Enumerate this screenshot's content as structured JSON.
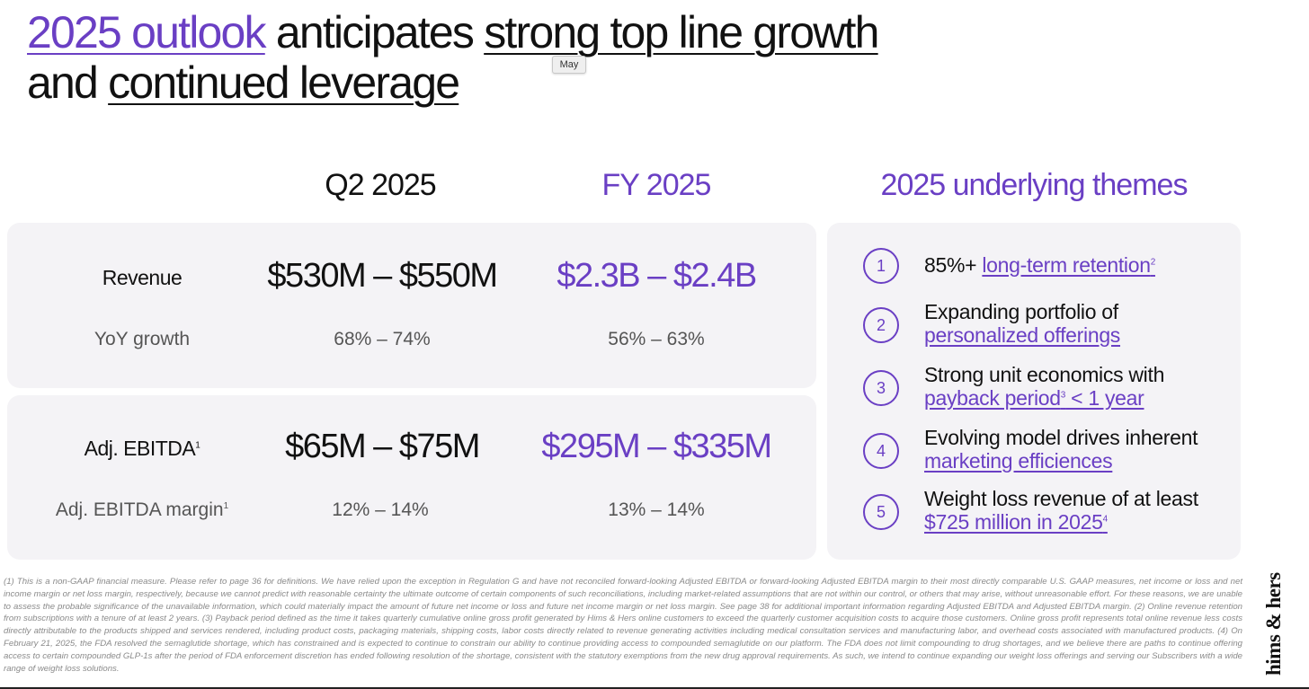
{
  "title": {
    "part1": "2025 outlook",
    "part2": " anticipates ",
    "part3": "strong top line growth",
    "part4": "and ",
    "part5": "continued leverage"
  },
  "tooltip": "May",
  "columns": {
    "q2": "Q2 2025",
    "fy": "FY 2025",
    "themes": "2025 underlying themes"
  },
  "revenue": {
    "label": "Revenue",
    "q2": "$530M – $550M",
    "fy": "$2.3B – $2.4B",
    "growth_label": "YoY growth",
    "growth_q2": "68% – 74%",
    "growth_fy": "56% – 63%"
  },
  "ebitda": {
    "label": "Adj. EBITDA",
    "label_sup": "1",
    "q2": "$65M – $75M",
    "fy": "$295M – $335M",
    "margin_label": "Adj. EBITDA margin",
    "margin_sup": "1",
    "margin_q2": "12% – 14%",
    "margin_fy": "13% – 14%"
  },
  "themes": [
    {
      "num": "1",
      "text": "85%+ ",
      "link": "long-term retention",
      "sup": "2"
    },
    {
      "num": "2",
      "text": "Expanding portfolio of",
      "link": "personalized offerings"
    },
    {
      "num": "3",
      "text": "Strong unit economics with",
      "link": "payback period",
      "sup": "3",
      "link2": " < 1 year"
    },
    {
      "num": "4",
      "text": "Evolving model drives inherent",
      "link": "marketing efficiences"
    },
    {
      "num": "5",
      "text": "Weight loss revenue of at least",
      "link": "$725 million in 2025",
      "sup": "4"
    }
  ],
  "footnote": "(1) This is a non-GAAP financial measure. Please refer to page 36 for definitions. We have relied upon the exception in Regulation G and have not reconciled forward-looking Adjusted EBITDA or forward-looking Adjusted EBITDA margin to their most directly comparable U.S. GAAP measures, net income or loss and net income margin or net loss margin, respectively, because we cannot predict with reasonable certainty the ultimate outcome of certain components of such reconciliations, including market-related assumptions that are not within our control, or others that may arise, without unreasonable effort. For these reasons, we are unable to assess the probable significance of the unavailable information, which could materially impact the amount of future net income or loss and future net income margin or net loss margin. See page 38 for additional important information regarding Adjusted EBITDA and Adjusted EBITDA margin. (2) Online revenue retention from subscriptions with a tenure of at least 2 years. (3) Payback period defined as the time it takes quarterly cumulative online gross profit generated by Hims & Hers online customers to exceed the quarterly customer acquisition costs to acquire those customers. Online gross profit represents total online revenue less costs directly attributable to the products shipped and services rendered, including product costs, packaging materials, shipping costs, labor costs directly related to revenue generating activities including medical consultation services and manufacturing labor, and overhead costs associated with manufactured products. (4) On February 21, 2025, the FDA resolved the semaglutide shortage, which has constrained and is expected to continue to constrain our ability to continue providing access to compounded semaglutide on our platform. The FDA does not limit compounding to drug shortages, and we believe there are paths to continue offering access to certain compounded GLP-1s after the period of FDA enforcement discretion has ended following resolution of the shortage, consistent with the statutory exemptions from the new drug approval requirements. As such, we intend to continue expanding our weight loss offerings and serving our Subscribers with a wide range of weight loss solutions.",
  "logo": "hims & hers",
  "colors": {
    "accent": "#6a3fc4",
    "panel": "#f4f3f6"
  }
}
